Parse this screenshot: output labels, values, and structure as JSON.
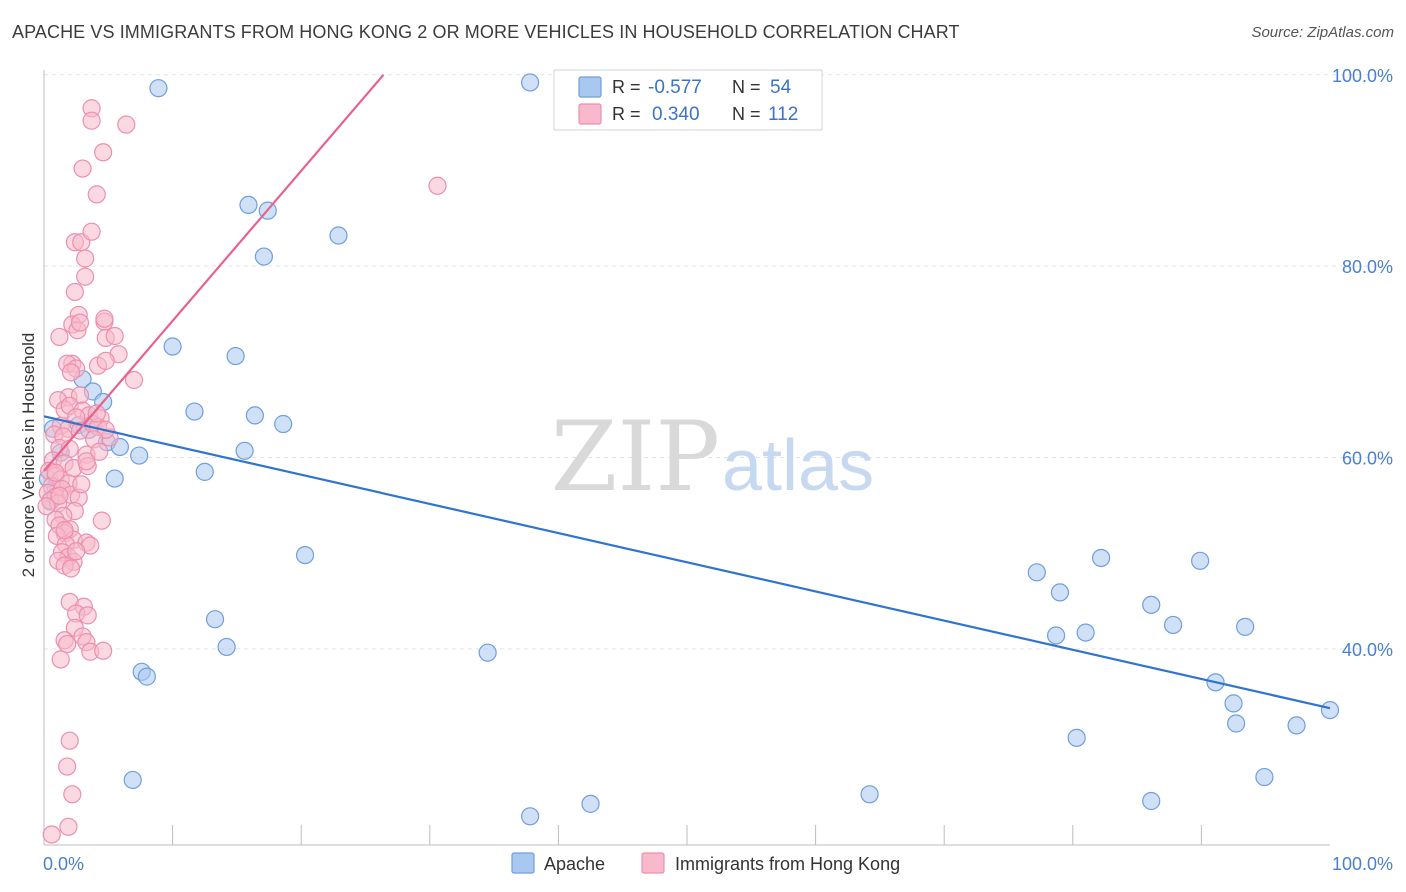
{
  "title": "APACHE VS IMMIGRANTS FROM HONG KONG 2 OR MORE VEHICLES IN HOUSEHOLD CORRELATION CHART",
  "source": "Source: ZipAtlas.com",
  "watermark": {
    "zip": "ZIP",
    "atlas": "atlas"
  },
  "colors": {
    "apache_fill": "#a9c8f0",
    "apache_stroke": "#6f9fdc",
    "apache_line": "#2f74d0",
    "hk_fill": "#f7b9cb",
    "hk_stroke": "#ec8fae",
    "hk_line": "#e7628f",
    "grid": "#e3e3e3",
    "axis_label": "#4a7fcf"
  },
  "legend": {
    "rows": [
      {
        "series": "Apache",
        "r_label": "R =",
        "r_value": "-0.577",
        "n_label": "N =",
        "n_value": "54"
      },
      {
        "series": "Immigrants from Hong Kong",
        "r_label": "R =",
        "r_value": "0.340",
        "n_label": "N =",
        "n_value": "112"
      }
    ]
  },
  "chart_data": {
    "type": "scatter",
    "title": "APACHE VS IMMIGRANTS FROM HONG KONG 2 OR MORE VEHICLES IN HOUSEHOLD CORRELATION CHART",
    "xlabel": "",
    "ylabel": "2 or more Vehicles in Household",
    "xlim": [
      0,
      100
    ],
    "ylim": [
      19.5,
      100.5
    ],
    "x_tick_labels": [
      "0.0%",
      "100.0%"
    ],
    "y_ticks": [
      40,
      60,
      80,
      100
    ],
    "y_tick_labels": [
      "40.0%",
      "60.0%",
      "80.0%",
      "100.0%"
    ],
    "grid": true,
    "legend_position": "bottom",
    "series": [
      {
        "name": "Apache",
        "color": "#6f9fdc",
        "trend": {
          "x": [
            0,
            100
          ],
          "y": [
            64.3,
            33.8
          ]
        },
        "points": [
          [
            8.9,
            98.6
          ],
          [
            37.8,
            99.2
          ],
          [
            15.9,
            86.4
          ],
          [
            17.4,
            85.8
          ],
          [
            17.1,
            81.0
          ],
          [
            22.9,
            83.2
          ],
          [
            10.0,
            71.6
          ],
          [
            14.9,
            70.6
          ],
          [
            11.7,
            64.8
          ],
          [
            16.4,
            64.4
          ],
          [
            18.6,
            63.5
          ],
          [
            3.0,
            68.2
          ],
          [
            3.8,
            66.9
          ],
          [
            4.6,
            65.8
          ],
          [
            2.7,
            63.4
          ],
          [
            3.5,
            62.9
          ],
          [
            4.9,
            61.6
          ],
          [
            5.9,
            61.1
          ],
          [
            7.4,
            60.2
          ],
          [
            12.5,
            58.5
          ],
          [
            15.6,
            60.7
          ],
          [
            5.5,
            57.8
          ],
          [
            20.3,
            49.8
          ],
          [
            13.3,
            43.1
          ],
          [
            14.2,
            40.2
          ],
          [
            7.6,
            37.6
          ],
          [
            8.0,
            37.1
          ],
          [
            34.5,
            39.6
          ],
          [
            6.9,
            26.3
          ],
          [
            37.8,
            22.5
          ],
          [
            42.5,
            23.8
          ],
          [
            64.2,
            24.8
          ],
          [
            77.2,
            48.0
          ],
          [
            79.0,
            45.9
          ],
          [
            82.2,
            49.5
          ],
          [
            86.1,
            44.6
          ],
          [
            89.9,
            49.2
          ],
          [
            78.7,
            41.4
          ],
          [
            81.0,
            41.7
          ],
          [
            87.8,
            42.5
          ],
          [
            93.4,
            42.3
          ],
          [
            91.1,
            36.5
          ],
          [
            92.5,
            34.3
          ],
          [
            92.7,
            32.2
          ],
          [
            97.4,
            32.0
          ],
          [
            100.0,
            33.6
          ],
          [
            80.3,
            30.7
          ],
          [
            86.1,
            24.1
          ],
          [
            94.9,
            26.6
          ],
          [
            0.7,
            63.0
          ],
          [
            1.3,
            60.5
          ],
          [
            0.9,
            56.9
          ],
          [
            0.5,
            55.4
          ],
          [
            0.3,
            57.8
          ]
        ]
      },
      {
        "name": "Immigrants from Hong Kong",
        "color": "#ec8fae",
        "trend": {
          "x": [
            0.0,
            26.4
          ],
          "y": [
            58.6,
            100.0
          ]
        },
        "points": [
          [
            3.7,
            96.5
          ],
          [
            3.7,
            95.2
          ],
          [
            6.4,
            94.8
          ],
          [
            4.6,
            91.9
          ],
          [
            3.0,
            90.2
          ],
          [
            4.1,
            87.5
          ],
          [
            30.6,
            88.4
          ],
          [
            2.4,
            82.5
          ],
          [
            2.9,
            82.5
          ],
          [
            3.2,
            80.8
          ],
          [
            3.7,
            83.6
          ],
          [
            3.2,
            78.9
          ],
          [
            2.4,
            77.3
          ],
          [
            2.7,
            74.9
          ],
          [
            2.2,
            73.9
          ],
          [
            2.6,
            73.3
          ],
          [
            1.2,
            72.6
          ],
          [
            4.7,
            74.2
          ],
          [
            4.8,
            72.5
          ],
          [
            5.5,
            72.7
          ],
          [
            5.8,
            70.8
          ],
          [
            2.2,
            69.8
          ],
          [
            1.8,
            69.8
          ],
          [
            2.5,
            69.3
          ],
          [
            2.1,
            68.9
          ],
          [
            4.2,
            69.6
          ],
          [
            4.8,
            70.1
          ],
          [
            7.0,
            68.1
          ],
          [
            1.9,
            66.3
          ],
          [
            2.8,
            66.5
          ],
          [
            1.1,
            66.0
          ],
          [
            1.6,
            65.0
          ],
          [
            2.0,
            65.4
          ],
          [
            3.0,
            64.9
          ],
          [
            3.5,
            64.4
          ],
          [
            4.4,
            64.1
          ],
          [
            2.5,
            64.2
          ],
          [
            1.3,
            63.3
          ],
          [
            1.9,
            63.0
          ],
          [
            2.8,
            62.8
          ],
          [
            3.8,
            63.5
          ],
          [
            4.2,
            63.2
          ],
          [
            0.8,
            62.4
          ],
          [
            1.5,
            62.2
          ],
          [
            5.1,
            62.1
          ],
          [
            1.2,
            61.0
          ],
          [
            2.0,
            60.9
          ],
          [
            3.3,
            60.3
          ],
          [
            0.7,
            59.7
          ],
          [
            1.6,
            59.4
          ],
          [
            2.3,
            58.9
          ],
          [
            3.4,
            59.1
          ],
          [
            0.4,
            58.6
          ],
          [
            0.9,
            58.1
          ],
          [
            1.3,
            57.7
          ],
          [
            1.9,
            57.3
          ],
          [
            0.6,
            57.0
          ],
          [
            1.4,
            56.7
          ],
          [
            0.3,
            56.3
          ],
          [
            0.9,
            55.9
          ],
          [
            2.1,
            56.1
          ],
          [
            2.7,
            55.8
          ],
          [
            0.5,
            55.5
          ],
          [
            1.1,
            55.2
          ],
          [
            0.2,
            54.9
          ],
          [
            2.4,
            54.4
          ],
          [
            1.5,
            53.9
          ],
          [
            0.9,
            53.5
          ],
          [
            4.5,
            53.4
          ],
          [
            1.2,
            52.9
          ],
          [
            2.0,
            52.5
          ],
          [
            1.6,
            52.1
          ],
          [
            1.0,
            51.8
          ],
          [
            2.3,
            51.4
          ],
          [
            3.3,
            51.1
          ],
          [
            1.7,
            50.9
          ],
          [
            3.6,
            50.8
          ],
          [
            1.4,
            50.1
          ],
          [
            1.9,
            49.6
          ],
          [
            1.1,
            49.2
          ],
          [
            2.3,
            49.1
          ],
          [
            1.6,
            48.7
          ],
          [
            2.1,
            48.4
          ],
          [
            2.0,
            44.9
          ],
          [
            3.1,
            44.4
          ],
          [
            2.5,
            43.7
          ],
          [
            3.4,
            43.5
          ],
          [
            2.4,
            42.2
          ],
          [
            3.0,
            41.3
          ],
          [
            1.6,
            40.9
          ],
          [
            1.8,
            40.5
          ],
          [
            3.3,
            40.7
          ],
          [
            3.6,
            39.7
          ],
          [
            4.6,
            39.8
          ],
          [
            1.3,
            38.9
          ],
          [
            2.0,
            30.4
          ],
          [
            1.8,
            27.7
          ],
          [
            2.2,
            24.8
          ],
          [
            1.9,
            21.4
          ],
          [
            0.6,
            20.6
          ],
          [
            2.8,
            74.1
          ],
          [
            4.7,
            74.5
          ],
          [
            3.3,
            59.6
          ],
          [
            2.9,
            57.2
          ],
          [
            4.8,
            62.9
          ],
          [
            4.1,
            64.6
          ],
          [
            1.6,
            52.4
          ],
          [
            2.5,
            50.2
          ],
          [
            0.9,
            58.4
          ],
          [
            1.2,
            56.0
          ],
          [
            3.9,
            61.9
          ],
          [
            4.3,
            60.6
          ]
        ]
      }
    ]
  }
}
